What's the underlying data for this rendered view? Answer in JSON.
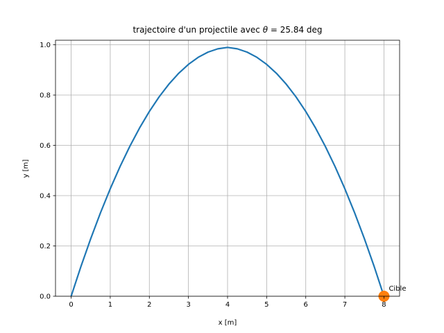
{
  "chart_data": {
    "type": "line",
    "title_prefix": "trajectoire d'un projectile avec ",
    "title_symbol": "θ",
    "title_suffix": " = 25.84 deg",
    "xlabel": "x [m]",
    "ylabel": "y [m]",
    "xlim": [
      -0.4,
      8.4
    ],
    "ylim": [
      0.0,
      1.018
    ],
    "xticks": [
      0,
      1,
      2,
      3,
      4,
      5,
      6,
      7,
      8
    ],
    "xtick_labels": [
      "0",
      "1",
      "2",
      "3",
      "4",
      "5",
      "6",
      "7",
      "8"
    ],
    "yticks": [
      0.0,
      0.2,
      0.4,
      0.6,
      0.8,
      1.0
    ],
    "ytick_labels": [
      "0.0",
      "0.2",
      "0.4",
      "0.6",
      "0.8",
      "1.0"
    ],
    "grid": true,
    "series": [
      {
        "color": "#1f77b4",
        "x": [
          0,
          0.25,
          0.5,
          0.75,
          1.0,
          1.25,
          1.5,
          1.75,
          2.0,
          2.25,
          2.5,
          2.75,
          3.0,
          3.25,
          3.5,
          3.75,
          4.0,
          4.25,
          4.5,
          4.75,
          5.0,
          5.25,
          5.5,
          5.75,
          6.0,
          6.25,
          6.5,
          6.75,
          7.0,
          7.25,
          7.5,
          7.75,
          8.0
        ],
        "y": [
          0.0,
          0.1181,
          0.2286,
          0.3317,
          0.4273,
          0.5154,
          0.596,
          0.6691,
          0.7347,
          0.7928,
          0.8434,
          0.8865,
          0.9221,
          0.9502,
          0.9708,
          0.9839,
          0.9895,
          0.9839,
          0.9708,
          0.9502,
          0.9221,
          0.8865,
          0.8434,
          0.7928,
          0.7347,
          0.6691,
          0.596,
          0.5154,
          0.4273,
          0.3317,
          0.2286,
          0.1181,
          0.0
        ]
      }
    ],
    "target": {
      "x": 8.0,
      "y": 0.0,
      "color": "#ff7f0e",
      "label": "Cible"
    }
  }
}
